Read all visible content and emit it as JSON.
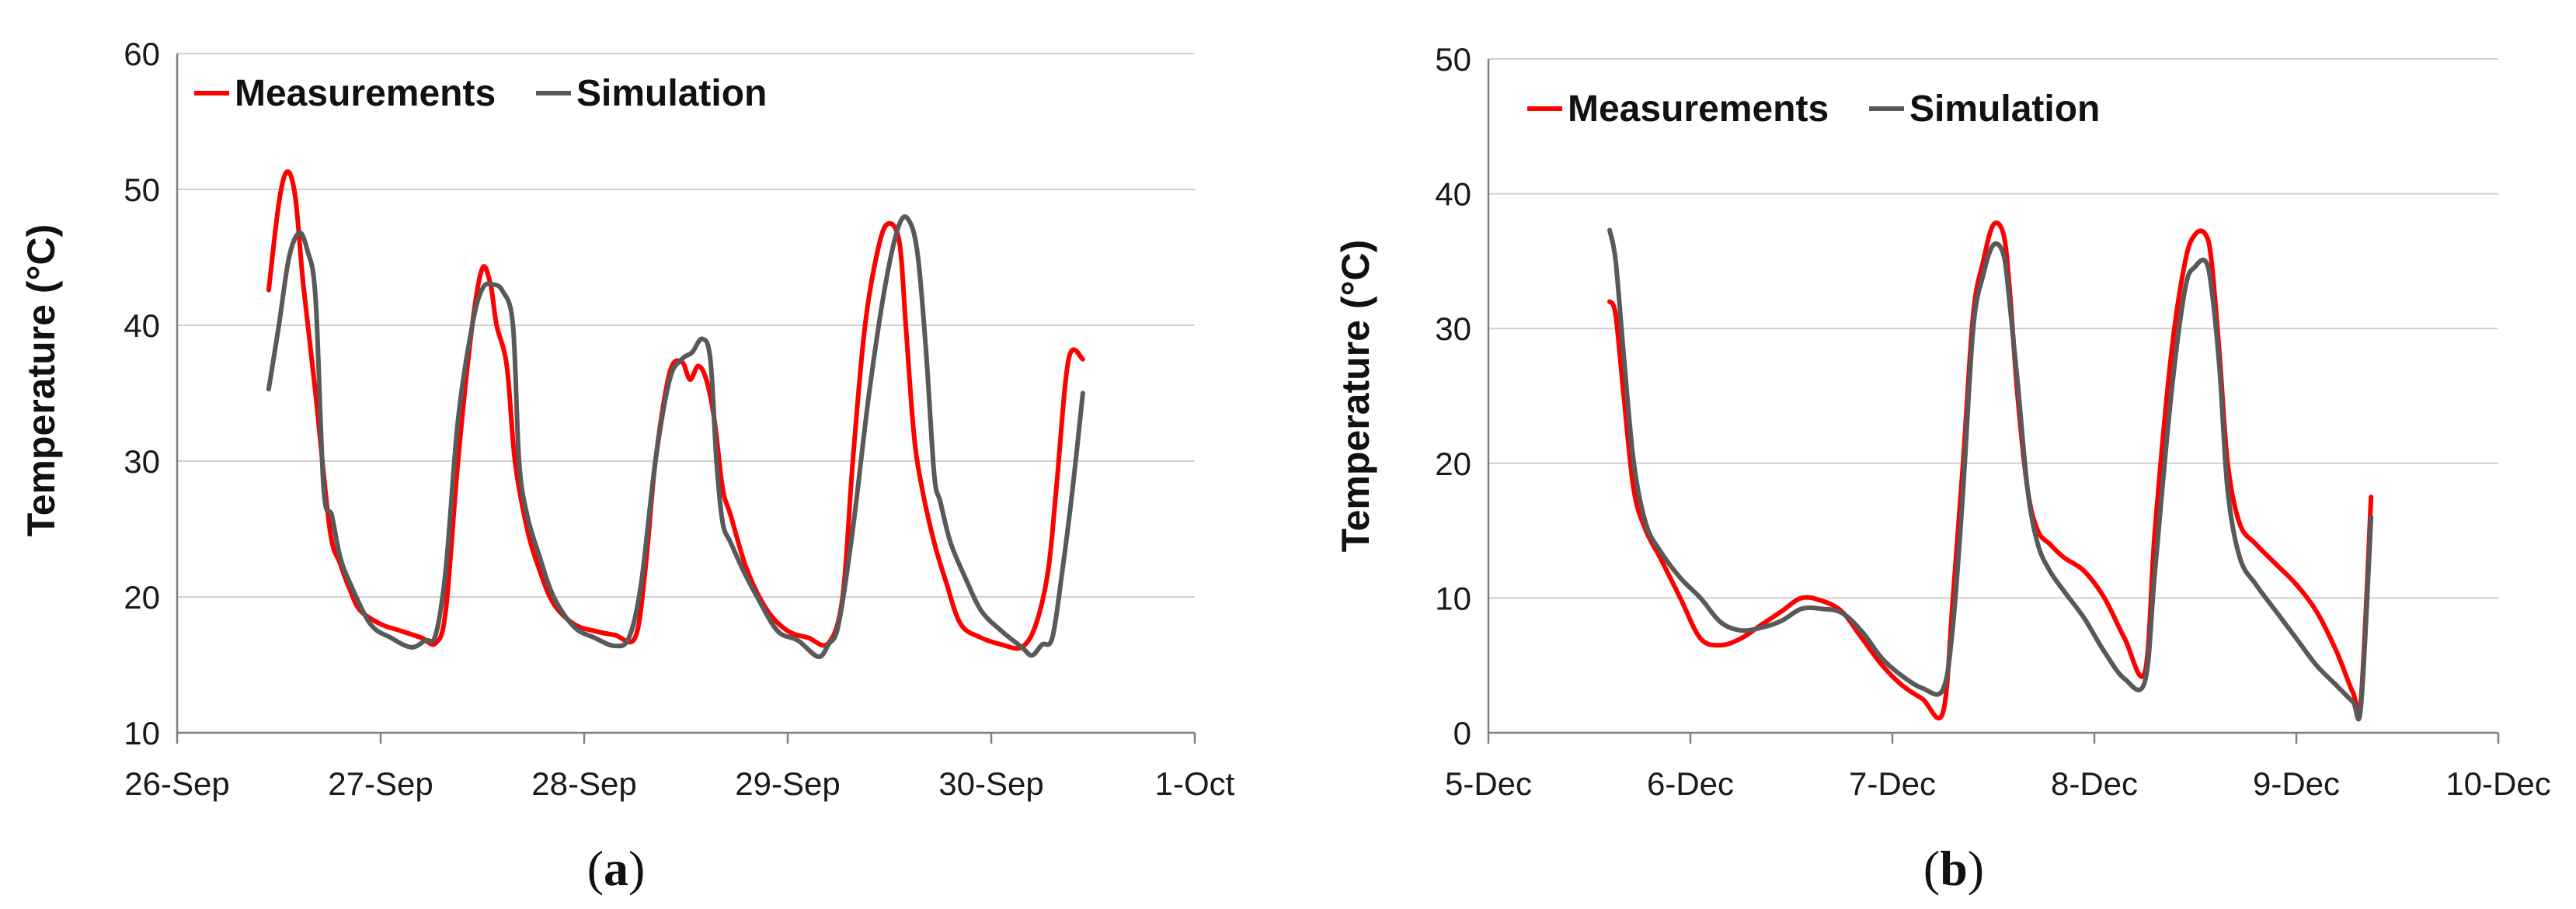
{
  "colors": {
    "measurements": "#ff0000",
    "simulation": "#595959"
  },
  "chart_data": [
    {
      "type": "line",
      "panel_label": "a",
      "ylabel": "Temperature (°C)",
      "xlabel": "",
      "ylim": [
        10,
        60
      ],
      "yticks": [
        10,
        20,
        30,
        40,
        50,
        60
      ],
      "xlim": [
        0,
        5
      ],
      "xticks": [
        0,
        1,
        2,
        3,
        4,
        5
      ],
      "xtick_labels": [
        "26-Sep",
        "27-Sep",
        "28-Sep",
        "29-Sep",
        "30-Sep",
        "1-Oct"
      ],
      "grid": true,
      "legend": "top-left",
      "series": [
        {
          "name": "Measurements",
          "color": "#ff0000",
          "x": [
            0.45,
            0.5,
            0.54,
            0.58,
            0.62,
            0.68,
            0.75,
            0.8,
            0.85,
            0.9,
            1.0,
            1.1,
            1.2,
            1.27,
            1.32,
            1.38,
            1.45,
            1.5,
            1.54,
            1.57,
            1.62,
            1.66,
            1.72,
            1.78,
            1.85,
            1.95,
            2.05,
            2.15,
            2.25,
            2.3,
            2.35,
            2.42,
            2.48,
            2.52,
            2.56,
            2.6,
            2.64,
            2.68,
            2.72,
            2.8,
            2.9,
            3.0,
            3.1,
            3.2,
            3.27,
            3.32,
            3.38,
            3.45,
            3.5,
            3.55,
            3.58,
            3.62,
            3.66,
            3.72,
            3.78,
            3.85,
            3.95,
            4.05,
            4.15,
            4.22,
            4.28,
            4.32,
            4.38,
            4.45
          ],
          "y": [
            42.6,
            49,
            51.3,
            49.5,
            43,
            35,
            25,
            22.5,
            20.5,
            19,
            18,
            17.5,
            17,
            16.6,
            19,
            30,
            40,
            44.2,
            43,
            40,
            37,
            30,
            25,
            22,
            19.5,
            18,
            17.5,
            17.2,
            17,
            22,
            30,
            36.5,
            37.3,
            36,
            37,
            36,
            33,
            28,
            26,
            22,
            19,
            17.5,
            17,
            16.6,
            20,
            30,
            40,
            46,
            47.5,
            46,
            40,
            32,
            28,
            24,
            21,
            18,
            17,
            16.5,
            16.3,
            18,
            22,
            28,
            37.5,
            37.5
          ]
        },
        {
          "name": "Simulation",
          "color": "#595959",
          "x": [
            0.45,
            0.5,
            0.55,
            0.6,
            0.64,
            0.68,
            0.72,
            0.76,
            0.8,
            0.85,
            0.95,
            1.05,
            1.15,
            1.22,
            1.27,
            1.32,
            1.38,
            1.45,
            1.5,
            1.55,
            1.6,
            1.65,
            1.68,
            1.72,
            1.78,
            1.85,
            1.95,
            2.05,
            2.15,
            2.22,
            2.28,
            2.35,
            2.42,
            2.48,
            2.53,
            2.58,
            2.62,
            2.65,
            2.68,
            2.72,
            2.78,
            2.85,
            2.95,
            3.05,
            3.15,
            3.2,
            3.25,
            3.32,
            3.4,
            3.48,
            3.55,
            3.6,
            3.64,
            3.68,
            3.72,
            3.75,
            3.8,
            3.87,
            3.95,
            4.05,
            4.15,
            4.2,
            4.25,
            4.3,
            4.35,
            4.4,
            4.45
          ],
          "y": [
            35.3,
            40,
            45,
            46.8,
            45.5,
            42,
            28,
            26,
            23,
            21,
            18,
            17,
            16.3,
            16.8,
            17.2,
            22,
            33,
            40,
            42.7,
            43,
            42.5,
            40,
            30,
            26,
            23,
            20,
            17.8,
            17,
            16.4,
            17,
            21,
            30,
            36,
            37.5,
            38,
            39,
            37.5,
            30,
            25.5,
            24,
            22,
            20,
            17.5,
            16.8,
            15.6,
            16.5,
            18,
            25,
            35,
            43,
            47.5,
            47.6,
            45,
            38,
            29,
            27,
            24,
            21.5,
            19,
            17.5,
            16.3,
            15.7,
            16.5,
            17,
            22,
            28,
            35
          ]
        }
      ]
    },
    {
      "type": "line",
      "panel_label": "b",
      "ylabel": "Temperature (°C)",
      "xlabel": "",
      "ylim": [
        0,
        50
      ],
      "yticks": [
        0,
        10,
        20,
        30,
        40,
        50
      ],
      "xlim": [
        0,
        5
      ],
      "xticks": [
        0,
        1,
        2,
        3,
        4,
        5
      ],
      "xtick_labels": [
        "5-Dec",
        "6-Dec",
        "7-Dec",
        "8-Dec",
        "9-Dec",
        "10-Dec"
      ],
      "grid": true,
      "legend": "top-left",
      "series": [
        {
          "name": "Measurements",
          "color": "#ff0000",
          "x": [
            0.6,
            0.63,
            0.67,
            0.72,
            0.78,
            0.85,
            0.95,
            1.05,
            1.15,
            1.25,
            1.35,
            1.45,
            1.55,
            1.65,
            1.75,
            1.85,
            1.95,
            2.05,
            2.15,
            2.25,
            2.3,
            2.35,
            2.4,
            2.45,
            2.5,
            2.55,
            2.58,
            2.62,
            2.67,
            2.72,
            2.78,
            2.85,
            2.95,
            3.05,
            3.15,
            3.25,
            3.3,
            3.38,
            3.45,
            3.5,
            3.55,
            3.58,
            3.62,
            3.66,
            3.72,
            3.8,
            3.9,
            4.0,
            4.1,
            4.2,
            4.28,
            4.32,
            4.37
          ],
          "y": [
            32,
            31,
            25,
            18,
            15,
            13,
            10,
            7,
            6.5,
            7,
            8,
            9,
            10,
            9.8,
            9,
            7,
            5,
            3.5,
            2.5,
            1.5,
            10,
            20,
            31,
            35,
            37.7,
            37,
            33,
            25,
            18,
            15,
            14,
            13,
            12,
            10,
            7,
            4.5,
            15,
            28,
            35,
            37,
            37,
            35,
            28,
            20,
            15.5,
            14,
            12.5,
            11,
            9,
            6,
            3,
            2.5,
            17.5
          ]
        },
        {
          "name": "Simulation",
          "color": "#595959",
          "x": [
            0.6,
            0.63,
            0.67,
            0.72,
            0.78,
            0.85,
            0.95,
            1.05,
            1.15,
            1.25,
            1.35,
            1.45,
            1.55,
            1.65,
            1.75,
            1.85,
            1.95,
            2.05,
            2.15,
            2.25,
            2.3,
            2.35,
            2.4,
            2.45,
            2.5,
            2.55,
            2.58,
            2.62,
            2.67,
            2.72,
            2.78,
            2.85,
            2.95,
            3.05,
            3.15,
            3.25,
            3.3,
            3.38,
            3.45,
            3.5,
            3.55,
            3.58,
            3.62,
            3.66,
            3.72,
            3.8,
            3.9,
            4.0,
            4.1,
            4.2,
            4.28,
            4.32,
            4.37
          ],
          "y": [
            37.3,
            35,
            28,
            20,
            15.5,
            13.5,
            11.5,
            10,
            8.2,
            7.6,
            7.8,
            8.3,
            9.2,
            9.2,
            8.9,
            7.5,
            5.5,
            4.2,
            3.3,
            3.2,
            8,
            18,
            30,
            34,
            36.2,
            35.5,
            32,
            26,
            18,
            14,
            12,
            10.5,
            8.5,
            6,
            4,
            3.8,
            12,
            25,
            33,
            34.6,
            35,
            33,
            27,
            18,
            13,
            11,
            9,
            7,
            5,
            3.5,
            2.3,
            2,
            16
          ]
        }
      ]
    }
  ]
}
